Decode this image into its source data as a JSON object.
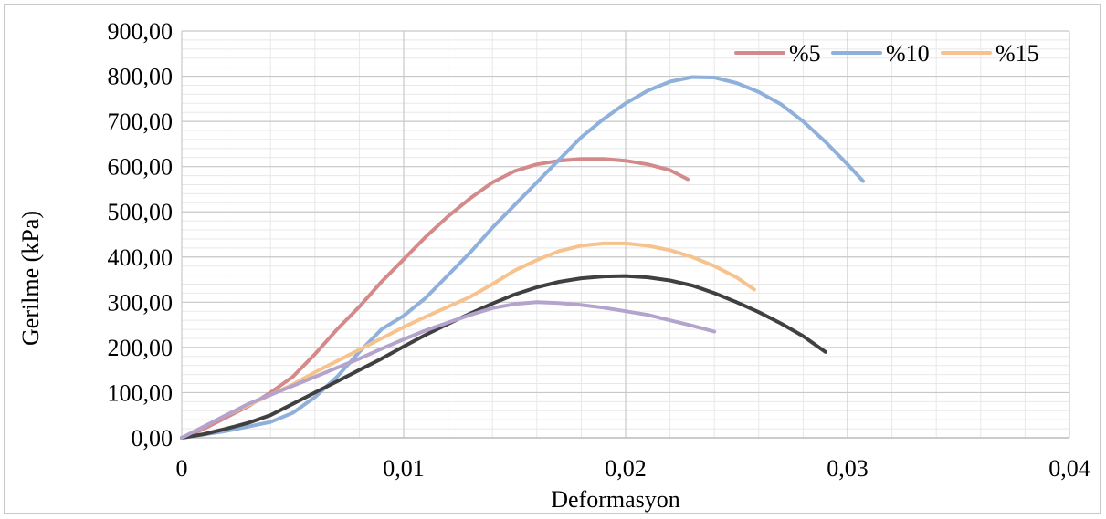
{
  "chart_data": {
    "type": "line",
    "title": "",
    "xlabel": "Deformasyon",
    "ylabel": "Gerilme (kPa)",
    "xlim": [
      0,
      0.04
    ],
    "ylim": [
      0,
      900
    ],
    "x_ticks": [
      0,
      0.01,
      0.02,
      0.03,
      0.04
    ],
    "x_tick_labels": [
      "0",
      "0,01",
      "0,02",
      "0,03",
      "0,04"
    ],
    "y_ticks": [
      0,
      100,
      200,
      300,
      400,
      500,
      600,
      700,
      800,
      900
    ],
    "y_tick_labels": [
      "0,00",
      "100,00",
      "200,00",
      "300,00",
      "400,00",
      "500,00",
      "600,00",
      "700,00",
      "800,00",
      "900,00"
    ],
    "grid": true,
    "legend_position": "top-right",
    "series": [
      {
        "name": "%5",
        "color": "#d48a8a",
        "in_legend": true,
        "points": [
          [
            0,
            0
          ],
          [
            0.001,
            20
          ],
          [
            0.002,
            45
          ],
          [
            0.003,
            70
          ],
          [
            0.004,
            100
          ],
          [
            0.005,
            135
          ],
          [
            0.006,
            185
          ],
          [
            0.007,
            240
          ],
          [
            0.008,
            290
          ],
          [
            0.009,
            345
          ],
          [
            0.01,
            395
          ],
          [
            0.011,
            445
          ],
          [
            0.012,
            490
          ],
          [
            0.013,
            530
          ],
          [
            0.014,
            565
          ],
          [
            0.015,
            590
          ],
          [
            0.016,
            605
          ],
          [
            0.017,
            613
          ],
          [
            0.018,
            617
          ],
          [
            0.019,
            617
          ],
          [
            0.02,
            613
          ],
          [
            0.021,
            605
          ],
          [
            0.022,
            592
          ],
          [
            0.0228,
            572
          ]
        ]
      },
      {
        "name": "%10",
        "color": "#8eb0da",
        "in_legend": true,
        "points": [
          [
            0,
            0
          ],
          [
            0.002,
            15
          ],
          [
            0.004,
            35
          ],
          [
            0.005,
            55
          ],
          [
            0.006,
            90
          ],
          [
            0.007,
            135
          ],
          [
            0.008,
            190
          ],
          [
            0.009,
            240
          ],
          [
            0.01,
            270
          ],
          [
            0.011,
            310
          ],
          [
            0.012,
            360
          ],
          [
            0.013,
            410
          ],
          [
            0.014,
            465
          ],
          [
            0.015,
            515
          ],
          [
            0.016,
            565
          ],
          [
            0.017,
            615
          ],
          [
            0.018,
            665
          ],
          [
            0.019,
            705
          ],
          [
            0.02,
            740
          ],
          [
            0.021,
            768
          ],
          [
            0.022,
            788
          ],
          [
            0.023,
            798
          ],
          [
            0.024,
            797
          ],
          [
            0.025,
            785
          ],
          [
            0.026,
            765
          ],
          [
            0.027,
            738
          ],
          [
            0.028,
            700
          ],
          [
            0.029,
            655
          ],
          [
            0.03,
            605
          ],
          [
            0.0307,
            568
          ]
        ]
      },
      {
        "name": "%15",
        "color": "#f6c38e",
        "in_legend": true,
        "points": [
          [
            0,
            0
          ],
          [
            0.001,
            25
          ],
          [
            0.002,
            50
          ],
          [
            0.003,
            72
          ],
          [
            0.004,
            95
          ],
          [
            0.005,
            118
          ],
          [
            0.006,
            145
          ],
          [
            0.007,
            170
          ],
          [
            0.008,
            195
          ],
          [
            0.009,
            220
          ],
          [
            0.01,
            245
          ],
          [
            0.011,
            268
          ],
          [
            0.012,
            290
          ],
          [
            0.013,
            312
          ],
          [
            0.014,
            340
          ],
          [
            0.015,
            370
          ],
          [
            0.016,
            393
          ],
          [
            0.017,
            413
          ],
          [
            0.018,
            425
          ],
          [
            0.019,
            430
          ],
          [
            0.02,
            430
          ],
          [
            0.021,
            425
          ],
          [
            0.022,
            415
          ],
          [
            0.023,
            400
          ],
          [
            0.024,
            380
          ],
          [
            0.025,
            355
          ],
          [
            0.0258,
            328
          ]
        ]
      },
      {
        "name": "",
        "color": "#404040",
        "in_legend": false,
        "points": [
          [
            0,
            0
          ],
          [
            0.001,
            8
          ],
          [
            0.002,
            20
          ],
          [
            0.003,
            33
          ],
          [
            0.004,
            50
          ],
          [
            0.005,
            75
          ],
          [
            0.006,
            100
          ],
          [
            0.007,
            125
          ],
          [
            0.008,
            150
          ],
          [
            0.009,
            175
          ],
          [
            0.01,
            202
          ],
          [
            0.011,
            228
          ],
          [
            0.012,
            252
          ],
          [
            0.013,
            275
          ],
          [
            0.014,
            297
          ],
          [
            0.015,
            317
          ],
          [
            0.016,
            333
          ],
          [
            0.017,
            345
          ],
          [
            0.018,
            353
          ],
          [
            0.019,
            357
          ],
          [
            0.02,
            358
          ],
          [
            0.021,
            355
          ],
          [
            0.022,
            348
          ],
          [
            0.023,
            337
          ],
          [
            0.024,
            320
          ],
          [
            0.025,
            300
          ],
          [
            0.026,
            278
          ],
          [
            0.027,
            253
          ],
          [
            0.028,
            225
          ],
          [
            0.029,
            190
          ]
        ]
      },
      {
        "name": "",
        "color": "#b4a3cd",
        "in_legend": false,
        "points": [
          [
            0,
            0
          ],
          [
            0.001,
            25
          ],
          [
            0.002,
            50
          ],
          [
            0.003,
            75
          ],
          [
            0.004,
            95
          ],
          [
            0.005,
            115
          ],
          [
            0.006,
            135
          ],
          [
            0.007,
            155
          ],
          [
            0.008,
            175
          ],
          [
            0.009,
            197
          ],
          [
            0.01,
            218
          ],
          [
            0.011,
            238
          ],
          [
            0.012,
            255
          ],
          [
            0.013,
            272
          ],
          [
            0.014,
            287
          ],
          [
            0.015,
            296
          ],
          [
            0.016,
            300
          ],
          [
            0.017,
            298
          ],
          [
            0.018,
            294
          ],
          [
            0.019,
            288
          ],
          [
            0.02,
            280
          ],
          [
            0.021,
            272
          ],
          [
            0.022,
            260
          ],
          [
            0.023,
            248
          ],
          [
            0.024,
            235
          ]
        ]
      }
    ]
  }
}
